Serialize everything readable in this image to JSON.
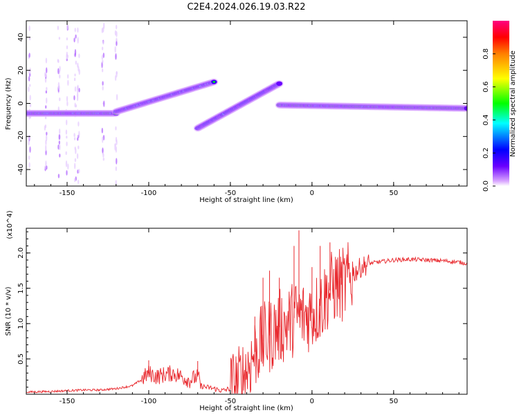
{
  "title": "C2E4.2024.026.19.03.R22",
  "colors": {
    "background": "#ffffff",
    "snr_line": "#e8262b",
    "axis": "#000000"
  },
  "chart_data": [
    {
      "type": "heatmap",
      "name": "spectrogram",
      "xlabel": "Height of straight line (km)",
      "ylabel": "Frequency (Hz)",
      "xlim": [
        -175,
        95
      ],
      "ylim": [
        -50,
        50
      ],
      "xticks": [
        -150,
        -100,
        -50,
        0,
        50
      ],
      "yticks": [
        -40,
        -20,
        0,
        20,
        40
      ],
      "grid": false,
      "colormap": [
        "#d9a6ff",
        "#6a00ff",
        "#0000ff",
        "#00ffff",
        "#00ff00",
        "#ffff00",
        "#ff8000",
        "#ff0000",
        "#ff0080"
      ],
      "colorbar": {
        "label": "Normalized spectral amplitude",
        "range": [
          0.0,
          1.0
        ],
        "ticks": [
          0.0,
          0.2,
          0.4,
          0.6,
          0.8
        ]
      },
      "tracks": [
        {
          "x": [
            -175,
            -120
          ],
          "y": [
            -6,
            -6
          ],
          "amplitude": 0.85
        },
        {
          "x": [
            -120,
            -60
          ],
          "y": [
            -5,
            13
          ],
          "amplitude": 0.55
        },
        {
          "x": [
            -70,
            -20
          ],
          "y": [
            -15,
            12
          ],
          "amplitude": 0.5
        },
        {
          "x": [
            -20,
            95
          ],
          "y": [
            -1,
            -3
          ],
          "amplitude": 0.95
        }
      ]
    },
    {
      "type": "line",
      "name": "snr",
      "xlabel": "Height of straight line (km)",
      "ylabel": "SNR (10 * v/v)",
      "y_multiplier": "(x10^4)",
      "xlim": [
        -175,
        95
      ],
      "ylim": [
        0,
        2.35
      ],
      "xticks": [
        -150,
        -100,
        -50,
        0,
        50
      ],
      "yticks": [
        0.5,
        1.0,
        1.5,
        2.0
      ],
      "grid": false,
      "series": [
        {
          "x": [
            -175,
            -160,
            -150,
            -140,
            -130,
            -120,
            -110,
            -105,
            -100,
            -95,
            -90,
            -85,
            -80,
            -75,
            -70,
            -68,
            -65,
            -60,
            -55,
            -50,
            -45,
            -40,
            -35,
            -30,
            -25,
            -20,
            -15,
            -10,
            -5,
            0,
            5,
            10,
            15,
            20,
            25,
            30,
            35,
            40,
            50,
            60,
            70,
            80,
            90,
            95
          ],
          "y": [
            0.03,
            0.04,
            0.05,
            0.06,
            0.06,
            0.08,
            0.12,
            0.2,
            0.3,
            0.25,
            0.28,
            0.3,
            0.25,
            0.2,
            0.25,
            0.12,
            0.1,
            0.08,
            0.05,
            0.08,
            0.15,
            0.35,
            0.6,
            0.75,
            0.85,
            0.95,
            1.0,
            1.1,
            1.1,
            1.15,
            1.25,
            1.45,
            1.55,
            1.55,
            1.7,
            1.8,
            1.85,
            1.87,
            1.9,
            1.91,
            1.9,
            1.89,
            1.87,
            1.85
          ],
          "spikes": [
            {
              "x": -100,
              "y": 0.48
            },
            {
              "x": -70,
              "y": 0.47
            },
            {
              "x": -35,
              "y": 1.1
            },
            {
              "x": -30,
              "y": 1.65
            },
            {
              "x": -26,
              "y": 1.75
            },
            {
              "x": -20,
              "y": 1.65
            },
            {
              "x": -11,
              "y": 2.1
            },
            {
              "x": -8,
              "y": 2.32
            },
            {
              "x": 0,
              "y": 1.8
            },
            {
              "x": 5,
              "y": 2.1
            },
            {
              "x": 11,
              "y": 2.15
            },
            {
              "x": 18,
              "y": 1.8
            }
          ]
        }
      ]
    }
  ]
}
